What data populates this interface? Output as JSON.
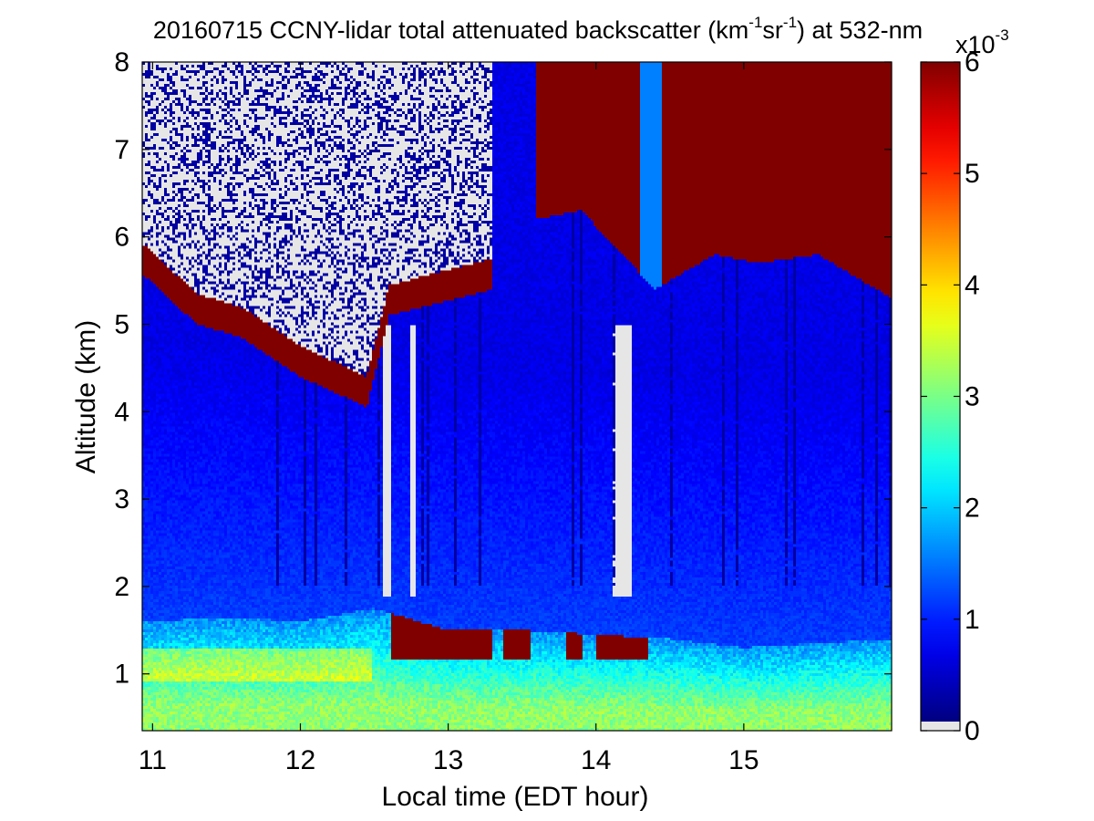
{
  "chart_data": {
    "type": "heatmap",
    "title_parts": {
      "lead": "20160715 CCNY-lidar total attenuated backscatter (km",
      "sup1": "-1",
      "mid": "sr",
      "sup2": "-1",
      "tail": ") at 532-nm"
    },
    "xlabel": "Local time (EDT hour)",
    "ylabel": "Altitude (km)",
    "xlim": [
      10.93,
      16.0
    ],
    "ylim": [
      0.35,
      8.0
    ],
    "x_ticks": [
      "11",
      "12",
      "13",
      "14",
      "15"
    ],
    "x_tick_values": [
      11,
      12,
      13,
      14,
      15
    ],
    "y_ticks": [
      "1",
      "2",
      "3",
      "4",
      "5",
      "6",
      "7",
      "8"
    ],
    "y_tick_values": [
      1,
      2,
      3,
      4,
      5,
      6,
      7,
      8
    ],
    "colorbar": {
      "colormap": "jet",
      "range": [
        0,
        6
      ],
      "ticks": [
        "0",
        "1",
        "2",
        "3",
        "4",
        "5",
        "6"
      ],
      "tick_values": [
        0,
        1,
        2,
        3,
        4,
        5,
        6
      ],
      "multiplier_base": "x10",
      "multiplier_exp": "-3",
      "no_data_color": "#e6e6e6"
    },
    "features": {
      "boundary_layer_top_km": [
        [
          11.0,
          1.6
        ],
        [
          11.5,
          1.65
        ],
        [
          12.0,
          1.6
        ],
        [
          12.5,
          1.75
        ],
        [
          13.0,
          1.5
        ],
        [
          13.5,
          1.5
        ],
        [
          14.0,
          1.45
        ],
        [
          14.5,
          1.4
        ],
        [
          15.0,
          1.3
        ],
        [
          16.0,
          1.4
        ]
      ],
      "mid_level_cloud_base_km": [
        [
          10.95,
          5.55
        ],
        [
          11.3,
          5.0
        ],
        [
          11.6,
          4.85
        ],
        [
          12.0,
          4.4
        ],
        [
          12.45,
          4.05
        ],
        [
          12.6,
          5.1
        ],
        [
          13.3,
          5.4
        ]
      ],
      "upper_cloud_base_km": [
        [
          13.6,
          6.2
        ],
        [
          13.9,
          6.3
        ],
        [
          14.4,
          5.4
        ],
        [
          14.8,
          5.8
        ],
        [
          15.1,
          5.7
        ],
        [
          15.5,
          5.8
        ],
        [
          15.8,
          5.5
        ],
        [
          16.0,
          5.3
        ]
      ],
      "low_cloud_segments": [
        [
          12.62,
          13.3
        ],
        [
          13.38,
          13.55
        ],
        [
          13.8,
          13.9
        ],
        [
          14.0,
          14.35
        ]
      ]
    },
    "grid": false
  }
}
